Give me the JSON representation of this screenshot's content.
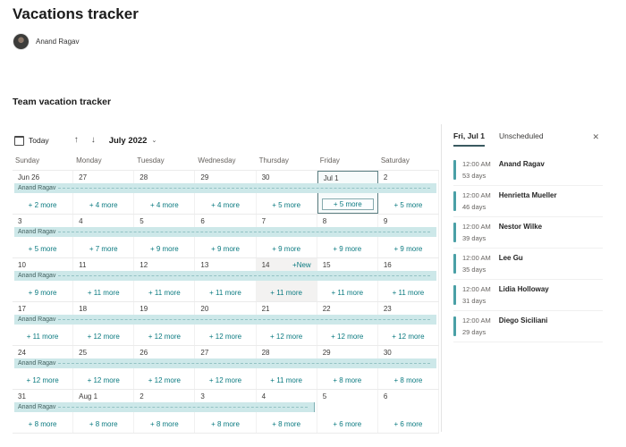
{
  "page": {
    "title": "Vacations tracker",
    "owner": "Anand Ragav",
    "section_title": "Team vacation tracker"
  },
  "toolbar": {
    "today_label": "Today",
    "month_label": "July 2022"
  },
  "icons": {
    "calendar": "calendar-outline",
    "up": "↑",
    "down": "↓",
    "chevron": "⌄",
    "close": "✕"
  },
  "colors": {
    "accent": "#0b7a80",
    "event_bar_bg": "#cde8e9",
    "selected_border": "#5c7f83",
    "item_bar": "#4aa0a6",
    "hover_cell_bg": "#f3f2f1"
  },
  "calendar": {
    "weekdays": [
      "Sunday",
      "Monday",
      "Tuesday",
      "Wednesday",
      "Thursday",
      "Friday",
      "Saturday"
    ],
    "event_name": "Anand Ragav",
    "new_label": "+New",
    "rows": [
      {
        "days": [
          {
            "label": "Jun 26",
            "more": "+ 2 more"
          },
          {
            "label": "27",
            "more": "+ 4 more"
          },
          {
            "label": "28",
            "more": "+ 4 more"
          },
          {
            "label": "29",
            "more": "+ 4 more"
          },
          {
            "label": "30",
            "more": "+ 5 more"
          },
          {
            "label": "Jul 1",
            "more": "+ 5 more",
            "selected": true
          },
          {
            "label": "2",
            "more": "+ 5 more"
          }
        ]
      },
      {
        "days": [
          {
            "label": "3",
            "more": "+ 5 more"
          },
          {
            "label": "4",
            "more": "+ 7 more"
          },
          {
            "label": "5",
            "more": "+ 9 more"
          },
          {
            "label": "6",
            "more": "+ 9 more"
          },
          {
            "label": "7",
            "more": "+ 9 more"
          },
          {
            "label": "8",
            "more": "+ 9 more"
          },
          {
            "label": "9",
            "more": "+ 9 more"
          }
        ]
      },
      {
        "days": [
          {
            "label": "10",
            "more": "+ 9 more"
          },
          {
            "label": "11",
            "more": "+ 11 more"
          },
          {
            "label": "12",
            "more": "+ 11 more"
          },
          {
            "label": "13",
            "more": "+ 11 more"
          },
          {
            "label": "14",
            "more": "+ 11 more",
            "hover": true,
            "new_link": true
          },
          {
            "label": "15",
            "more": "+ 11 more"
          },
          {
            "label": "16",
            "more": "+ 11 more"
          }
        ]
      },
      {
        "days": [
          {
            "label": "17",
            "more": "+ 11 more"
          },
          {
            "label": "18",
            "more": "+ 12 more"
          },
          {
            "label": "19",
            "more": "+ 12 more"
          },
          {
            "label": "20",
            "more": "+ 12 more"
          },
          {
            "label": "21",
            "more": "+ 12 more"
          },
          {
            "label": "22",
            "more": "+ 12 more"
          },
          {
            "label": "23",
            "more": "+ 12 more"
          }
        ]
      },
      {
        "days": [
          {
            "label": "24",
            "more": "+ 12 more"
          },
          {
            "label": "25",
            "more": "+ 12 more"
          },
          {
            "label": "26",
            "more": "+ 12 more"
          },
          {
            "label": "27",
            "more": "+ 12 more"
          },
          {
            "label": "28",
            "more": "+ 11 more"
          },
          {
            "label": "29",
            "more": "+ 8 more"
          },
          {
            "label": "30",
            "more": "+ 8 more"
          }
        ]
      },
      {
        "event_cols": 5,
        "days": [
          {
            "label": "31",
            "more": "+ 8 more"
          },
          {
            "label": "Aug 1",
            "more": "+ 8 more"
          },
          {
            "label": "2",
            "more": "+ 8 more"
          },
          {
            "label": "3",
            "more": "+ 8 more"
          },
          {
            "label": "4",
            "more": "+ 8 more"
          },
          {
            "label": "5",
            "more": "+ 6 more"
          },
          {
            "label": "6",
            "more": "+ 6 more"
          }
        ]
      }
    ]
  },
  "panel": {
    "tabs": [
      {
        "label": "Fri, Jul 1",
        "active": true
      },
      {
        "label": "Unscheduled",
        "active": false
      }
    ],
    "close_icon": "✕",
    "items": [
      {
        "time": "12:00 AM",
        "name": "Anand Ragav",
        "duration": "53 days"
      },
      {
        "time": "12:00 AM",
        "name": "Henrietta Mueller",
        "duration": "46 days"
      },
      {
        "time": "12:00 AM",
        "name": "Nestor Wilke",
        "duration": "39 days"
      },
      {
        "time": "12:00 AM",
        "name": "Lee Gu",
        "duration": "35 days"
      },
      {
        "time": "12:00 AM",
        "name": "Lidia Holloway",
        "duration": "31 days"
      },
      {
        "time": "12:00 AM",
        "name": "Diego Siciliani",
        "duration": "29 days"
      }
    ]
  }
}
